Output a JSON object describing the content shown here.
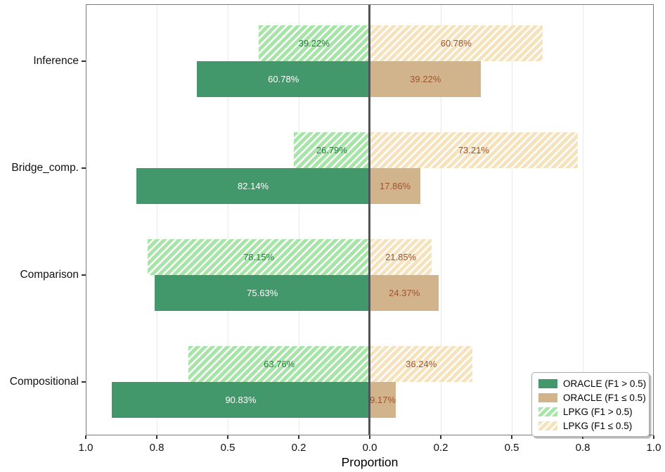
{
  "chart_data": {
    "type": "bar",
    "variant": "horizontal-diverging",
    "xlabel": "Proportion",
    "x_tick_labels": [
      "1.0",
      "0.8",
      "0.5",
      "0.2",
      "0.0",
      "0.2",
      "0.5",
      "0.8",
      "1.0"
    ],
    "categories": [
      "Inference",
      "Bridge_comp.",
      "Comparison",
      "Compositional"
    ],
    "series": [
      {
        "name": "ORACLE (F1 > 0.5)",
        "side": "left",
        "row": "bottom",
        "style": "solid-green",
        "unit": "%",
        "values": [
          60.78,
          82.14,
          75.63,
          90.83
        ]
      },
      {
        "name": "ORACLE (F1 ≤ 0.5)",
        "side": "right",
        "row": "bottom",
        "style": "solid-tan",
        "unit": "%",
        "values": [
          39.22,
          17.86,
          24.37,
          9.17
        ]
      },
      {
        "name": "LPKG (F1 > 0.5)",
        "side": "left",
        "row": "top",
        "style": "hatch-green",
        "unit": "%",
        "values": [
          39.22,
          26.79,
          78.15,
          63.76
        ]
      },
      {
        "name": "LPKG (F1 ≤ 0.5)",
        "side": "right",
        "row": "top",
        "style": "hatch-tan",
        "unit": "%",
        "values": [
          60.78,
          73.21,
          21.85,
          36.24
        ]
      }
    ],
    "bar_labels": {
      "ORACLE (F1 > 0.5)": [
        "60.78%",
        "82.14%",
        "75.63%",
        "90.83%"
      ],
      "ORACLE (F1 ≤ 0.5)": [
        "39.22%",
        "17.86%",
        "24.37%",
        "9.17%"
      ],
      "LPKG (F1 > 0.5)": [
        "39.22%",
        "26.79%",
        "78.15%",
        "63.76%"
      ],
      "LPKG (F1 ≤ 0.5)": [
        "60.78%",
        "73.21%",
        "21.85%",
        "36.24%"
      ]
    },
    "legend": {
      "position": "lower-right",
      "items": [
        "ORACLE (F1 > 0.5)",
        "ORACLE (F1 ≤ 0.5)",
        "LPKG (F1 > 0.5)",
        "LPKG (F1 ≤ 0.5)"
      ]
    },
    "axis_range": [
      1.0,
      0.0,
      1.0
    ],
    "grid": "vertical-light",
    "colors": {
      "solid-green": "#43986B",
      "solid-tan": "#D2B48C",
      "hatch-green": "#A7E4A7",
      "hatch-tan": "#F5E3BD",
      "hatch-stripe": "#FFFFFF",
      "text-on-green": "#FFFFFF",
      "text-green": "#1E813A",
      "text-brown": "#A0522D",
      "zero-line": "#535353",
      "frame": "#7A7A7A",
      "gridline": "#E9E9E9"
    }
  }
}
